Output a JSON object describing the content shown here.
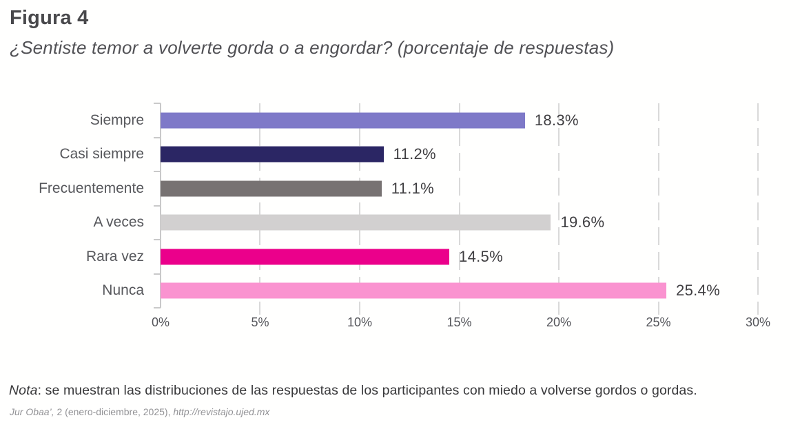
{
  "header": {
    "title": "Figura 4",
    "subtitle": "¿Sentiste temor a volverte gorda o a engordar? (porcentaje de respuestas)"
  },
  "chart_data": {
    "type": "bar",
    "orientation": "horizontal",
    "title": "¿Sentiste temor a volverte gorda o a engordar? (porcentaje de respuestas)",
    "categories": [
      "Siempre",
      "Casi siempre",
      "Frecuentemente",
      "A veces",
      "Rara vez",
      "Nunca"
    ],
    "values": [
      18.3,
      11.2,
      11.1,
      19.6,
      14.5,
      25.4
    ],
    "value_labels": [
      "18.3%",
      "11.2%",
      "11.1%",
      "19.6%",
      "14.5%",
      "25.4%"
    ],
    "bar_colors": [
      "#7e79c8",
      "#2b2664",
      "#777272",
      "#d2d0d0",
      "#eb008b",
      "#fa93d0"
    ],
    "xlabel": "",
    "ylabel": "",
    "xlim": [
      0,
      30
    ],
    "x_tick_values": [
      0,
      5,
      10,
      15,
      20,
      25,
      30
    ],
    "x_ticks": [
      "0%",
      "5%",
      "10%",
      "15%",
      "20%",
      "25%",
      "30%"
    ],
    "grid": true,
    "gridline_color": "#d9d9d9",
    "legend": "none"
  },
  "note": {
    "prefix": "Nota",
    "rest": ": se muestran las distribuciones de las respuestas de los participantes con miedo a volverse gordos o gordas."
  },
  "source": {
    "journal": "Jur Obaa’,",
    "issue": " 2 (enero-diciembre, 2025), ",
    "url": "http://revistajo.ujed.mx"
  }
}
